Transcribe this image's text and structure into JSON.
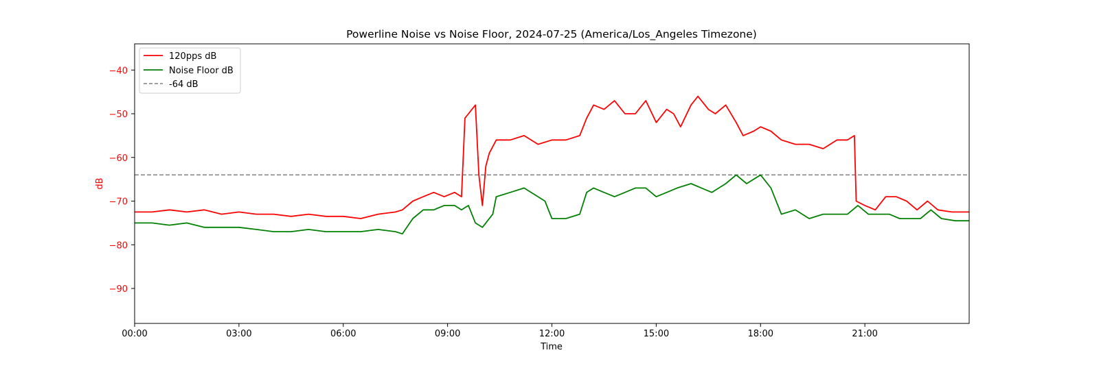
{
  "chart_data": {
    "type": "line",
    "title": "Powerline Noise vs Noise Floor, 2024-07-25 (America/Los_Angeles Timezone)",
    "xlabel": "Time",
    "ylabel": "dB",
    "x_ticks": [
      "00:00",
      "03:00",
      "06:00",
      "09:00",
      "12:00",
      "15:00",
      "18:00",
      "21:00"
    ],
    "y_ticks": [
      -40,
      -50,
      -60,
      -70,
      -80,
      -90
    ],
    "xlim_hours": [
      0,
      24
    ],
    "ylim": [
      -98,
      -34
    ],
    "grid": false,
    "legend_position": "top-left",
    "series": [
      {
        "name": "120pps dB",
        "color": "#ff0000",
        "x_hours": [
          0.0,
          0.5,
          1.0,
          1.5,
          2.0,
          2.5,
          3.0,
          3.5,
          4.0,
          4.5,
          5.0,
          5.5,
          6.0,
          6.5,
          7.0,
          7.5,
          7.7,
          8.0,
          8.3,
          8.6,
          8.9,
          9.2,
          9.4,
          9.5,
          9.6,
          9.8,
          9.9,
          10.0,
          10.1,
          10.2,
          10.4,
          10.8,
          11.2,
          11.6,
          12.0,
          12.4,
          12.8,
          13.0,
          13.2,
          13.5,
          13.8,
          14.1,
          14.4,
          14.7,
          15.0,
          15.3,
          15.5,
          15.7,
          16.0,
          16.2,
          16.5,
          16.7,
          17.0,
          17.3,
          17.5,
          17.8,
          18.0,
          18.3,
          18.6,
          19.0,
          19.4,
          19.8,
          20.2,
          20.5,
          20.7,
          20.75,
          21.0,
          21.3,
          21.6,
          21.9,
          22.2,
          22.5,
          22.8,
          23.1,
          23.5,
          24.0
        ],
        "values": [
          -72.5,
          -72.5,
          -72.0,
          -72.5,
          -72.0,
          -73.0,
          -72.5,
          -73.0,
          -73.0,
          -73.5,
          -73.0,
          -73.5,
          -73.5,
          -74.0,
          -73.0,
          -72.5,
          -72.0,
          -70.0,
          -69.0,
          -68.0,
          -69.0,
          -68.0,
          -69.0,
          -51.0,
          -50.0,
          -48.0,
          -64.0,
          -71.0,
          -62.0,
          -59.0,
          -56.0,
          -56.0,
          -55.0,
          -57.0,
          -56.0,
          -56.0,
          -55.0,
          -51.0,
          -48.0,
          -49.0,
          -47.0,
          -50.0,
          -50.0,
          -47.0,
          -52.0,
          -49.0,
          -50.0,
          -53.0,
          -48.0,
          -46.0,
          -49.0,
          -50.0,
          -48.0,
          -52.0,
          -55.0,
          -54.0,
          -53.0,
          -54.0,
          -56.0,
          -57.0,
          -57.0,
          -58.0,
          -56.0,
          -56.0,
          -55.0,
          -70.0,
          -71.0,
          -72.0,
          -69.0,
          -69.0,
          -70.0,
          -72.0,
          -70.0,
          -72.0,
          -72.5,
          -72.5
        ]
      },
      {
        "name": "Noise Floor dB",
        "color": "#008000",
        "x_hours": [
          0.0,
          0.5,
          1.0,
          1.5,
          2.0,
          2.5,
          3.0,
          3.5,
          4.0,
          4.5,
          5.0,
          5.5,
          6.0,
          6.5,
          7.0,
          7.5,
          7.7,
          8.0,
          8.3,
          8.6,
          8.9,
          9.2,
          9.4,
          9.6,
          9.8,
          10.0,
          10.3,
          10.4,
          10.8,
          11.2,
          11.6,
          11.8,
          12.0,
          12.4,
          12.8,
          13.0,
          13.2,
          13.5,
          13.8,
          14.1,
          14.4,
          14.7,
          15.0,
          15.3,
          15.6,
          16.0,
          16.3,
          16.6,
          17.0,
          17.3,
          17.6,
          18.0,
          18.3,
          18.6,
          19.0,
          19.4,
          19.8,
          20.2,
          20.5,
          20.8,
          21.1,
          21.4,
          21.7,
          22.0,
          22.3,
          22.6,
          22.9,
          23.2,
          23.6,
          24.0
        ],
        "values": [
          -75.0,
          -75.0,
          -75.5,
          -75.0,
          -76.0,
          -76.0,
          -76.0,
          -76.5,
          -77.0,
          -77.0,
          -76.5,
          -77.0,
          -77.0,
          -77.0,
          -76.5,
          -77.0,
          -77.5,
          -74.0,
          -72.0,
          -72.0,
          -71.0,
          -71.0,
          -72.0,
          -71.0,
          -75.0,
          -76.0,
          -73.0,
          -69.0,
          -68.0,
          -67.0,
          -69.0,
          -70.0,
          -74.0,
          -74.0,
          -73.0,
          -68.0,
          -67.0,
          -68.0,
          -69.0,
          -68.0,
          -67.0,
          -67.0,
          -69.0,
          -68.0,
          -67.0,
          -66.0,
          -67.0,
          -68.0,
          -66.0,
          -64.0,
          -66.0,
          -64.0,
          -67.0,
          -73.0,
          -72.0,
          -74.0,
          -73.0,
          -73.0,
          -73.0,
          -71.0,
          -73.0,
          -73.0,
          -73.0,
          -74.0,
          -74.0,
          -74.0,
          -72.0,
          -74.0,
          -74.5,
          -74.5
        ]
      },
      {
        "name": "-64 dB",
        "color": "#808080",
        "style": "dashed",
        "constant": -64
      }
    ]
  }
}
